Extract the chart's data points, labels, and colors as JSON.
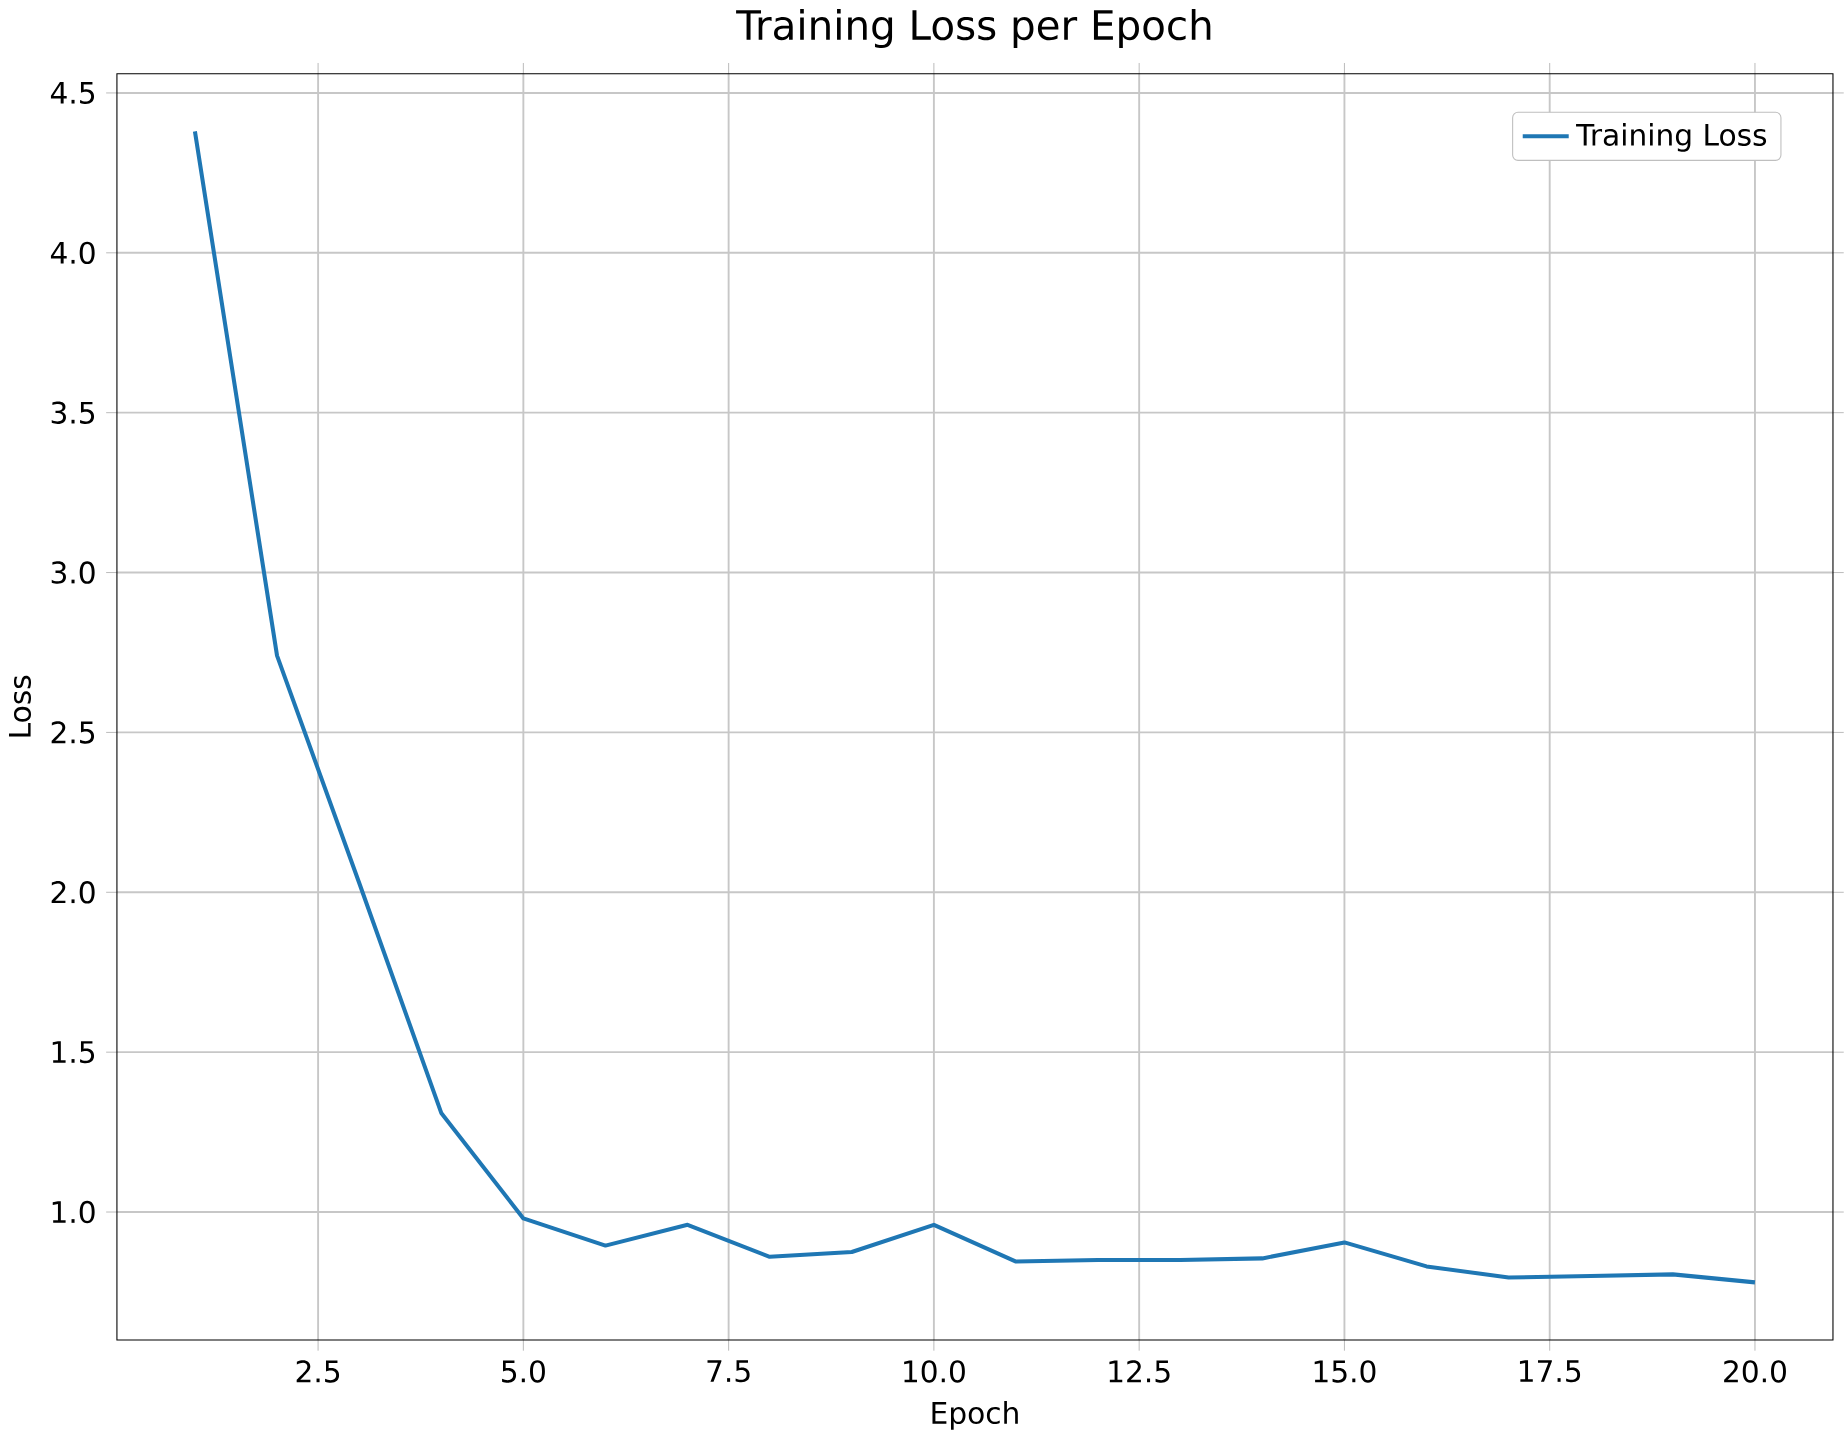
{
  "chart_data": {
    "type": "line",
    "title": "Training Loss per Epoch",
    "xlabel": "Epoch",
    "ylabel": "Loss",
    "x": [
      1,
      2,
      3,
      4,
      5,
      6,
      7,
      8,
      9,
      10,
      11,
      12,
      13,
      14,
      15,
      16,
      17,
      18,
      19,
      20
    ],
    "series": [
      {
        "name": "Training Loss",
        "color": "#1f77b4",
        "values": [
          4.38,
          2.74,
          2.03,
          1.31,
          0.98,
          0.895,
          0.96,
          0.86,
          0.875,
          0.96,
          0.845,
          0.85,
          0.85,
          0.855,
          0.905,
          0.83,
          0.795,
          0.8,
          0.805,
          0.78
        ]
      }
    ],
    "xlim": [
      0.05,
      20.95
    ],
    "xticks": [
      {
        "value": 2.5,
        "label": "2.5"
      },
      {
        "value": 5,
        "label": "5.0"
      },
      {
        "value": 7.5,
        "label": "7.5"
      },
      {
        "value": 10,
        "label": "10.0"
      },
      {
        "value": 12.5,
        "label": "12.5"
      },
      {
        "value": 15,
        "label": "15.0"
      },
      {
        "value": 17.5,
        "label": "17.5"
      },
      {
        "value": 20,
        "label": "20.0"
      }
    ],
    "ylim": [
      0.6,
      4.56
    ],
    "yticks": [
      {
        "value": 1,
        "label": "1.0"
      },
      {
        "value": 1.5,
        "label": "1.5"
      },
      {
        "value": 2,
        "label": "2.0"
      },
      {
        "value": 2.5,
        "label": "2.5"
      },
      {
        "value": 3,
        "label": "3.0"
      },
      {
        "value": 3.5,
        "label": "3.5"
      },
      {
        "value": 4,
        "label": "4.0"
      },
      {
        "value": 4.5,
        "label": "4.5"
      }
    ],
    "grid": true,
    "legend": "top right",
    "marker": "none",
    "line_style": "solid"
  }
}
